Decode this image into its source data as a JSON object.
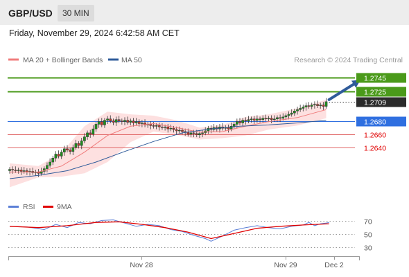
{
  "header": {
    "pair": "GBP/USD",
    "timeframe": "30 MIN"
  },
  "date_line": "Friday, November 29, 2024 6:42:58 AM CET",
  "attribution": "Research © 2024 Trading Central",
  "legend": {
    "main": [
      {
        "label": "MA 20 + Bollinger Bands",
        "color": "#f07c7c"
      },
      {
        "label": "MA 50",
        "color": "#2f5b9a"
      }
    ],
    "rsi": [
      {
        "label": "RSI",
        "color": "#5b7fd6"
      },
      {
        "label": "9MA",
        "color": "#e00000"
      }
    ]
  },
  "colors": {
    "resistance": "#4a9a1a",
    "pivot": "#2f6fe0",
    "support": "#e06565",
    "candle_up": "#1e8f1e",
    "candle_down": "#c0392b",
    "band_fill": "#fde0e0",
    "arrow": "#2f5b9a"
  },
  "chart_data": [
    {
      "type": "candlestick",
      "title": "GBP/USD",
      "timeframe": "30 MIN",
      "x_ticks": [
        "Nov 28",
        "Nov 29",
        "Dec 2"
      ],
      "ylim": [
        1.257,
        1.276
      ],
      "levels": [
        {
          "value": 1.2745,
          "label": "1.2745",
          "kind": "resistance"
        },
        {
          "value": 1.2725,
          "label": "1.2725",
          "kind": "resistance"
        },
        {
          "value": 1.2709,
          "label": "1.2709",
          "kind": "last"
        },
        {
          "value": 1.268,
          "label": "1.2680",
          "kind": "pivot"
        },
        {
          "value": 1.266,
          "label": "1.2660",
          "kind": "support"
        },
        {
          "value": 1.264,
          "label": "1.2640",
          "kind": "support"
        }
      ],
      "closes": [
        1.2607,
        1.2606,
        1.2605,
        1.2606,
        1.2604,
        1.2605,
        1.2603,
        1.2604,
        1.2602,
        1.2603,
        1.2601,
        1.2604,
        1.2608,
        1.2613,
        1.2618,
        1.2624,
        1.263,
        1.2627,
        1.2633,
        1.2638,
        1.2636,
        1.2634,
        1.264,
        1.2646,
        1.2643,
        1.265,
        1.2656,
        1.2662,
        1.266,
        1.2668,
        1.2675,
        1.2679,
        1.2674,
        1.2681,
        1.2683,
        1.268,
        1.2678,
        1.2682,
        1.268,
        1.2679,
        1.2681,
        1.2678,
        1.268,
        1.2677,
        1.2679,
        1.2676,
        1.2677,
        1.2674,
        1.2675,
        1.2673,
        1.2672,
        1.2673,
        1.2671,
        1.267,
        1.2671,
        1.2668,
        1.2669,
        1.2667,
        1.2665,
        1.2666,
        1.2664,
        1.2663,
        1.266,
        1.2662,
        1.2661,
        1.2659,
        1.2661,
        1.2662,
        1.2665,
        1.2669,
        1.2667,
        1.267,
        1.2668,
        1.2671,
        1.2669,
        1.267,
        1.2668,
        1.2672,
        1.2675,
        1.2679,
        1.2677,
        1.2681,
        1.268,
        1.2682,
        1.2683,
        1.2681,
        1.2683,
        1.2682,
        1.2684,
        1.2683,
        1.2684,
        1.2682,
        1.2683,
        1.2685,
        1.2684,
        1.2686,
        1.2688,
        1.269,
        1.2692,
        1.2695,
        1.2697,
        1.2699,
        1.2701,
        1.2703,
        1.2702,
        1.2704,
        1.2705,
        1.2703,
        1.2704,
        1.2702,
        1.2709
      ],
      "ma50_points": [
        [
          0,
          1.2593
        ],
        [
          10,
          1.2598
        ],
        [
          20,
          1.2605
        ],
        [
          30,
          1.2618
        ],
        [
          40,
          1.2634
        ],
        [
          50,
          1.2649
        ],
        [
          60,
          1.2662
        ],
        [
          70,
          1.2668
        ],
        [
          80,
          1.2672
        ],
        [
          90,
          1.2674
        ],
        [
          100,
          1.2677
        ],
        [
          110,
          1.2681
        ]
      ],
      "ma20_points": [
        [
          0,
          1.2603
        ],
        [
          10,
          1.2603
        ],
        [
          18,
          1.2612
        ],
        [
          26,
          1.2633
        ],
        [
          34,
          1.2658
        ],
        [
          42,
          1.2672
        ],
        [
          50,
          1.2676
        ],
        [
          58,
          1.267
        ],
        [
          66,
          1.2663
        ],
        [
          74,
          1.2664
        ],
        [
          82,
          1.2672
        ],
        [
          90,
          1.2679
        ],
        [
          100,
          1.2685
        ],
        [
          110,
          1.2697
        ]
      ],
      "band_upper_points": [
        [
          0,
          1.2616
        ],
        [
          10,
          1.2612
        ],
        [
          18,
          1.2632
        ],
        [
          26,
          1.2672
        ],
        [
          34,
          1.2694
        ],
        [
          42,
          1.269
        ],
        [
          50,
          1.2688
        ],
        [
          58,
          1.2681
        ],
        [
          66,
          1.267
        ],
        [
          74,
          1.2674
        ],
        [
          82,
          1.2686
        ],
        [
          90,
          1.269
        ],
        [
          100,
          1.2699
        ],
        [
          110,
          1.2712
        ]
      ],
      "band_lower_points": [
        [
          0,
          1.258
        ],
        [
          10,
          1.2595
        ],
        [
          18,
          1.2596
        ],
        [
          26,
          1.2601
        ],
        [
          34,
          1.2618
        ],
        [
          42,
          1.2648
        ],
        [
          50,
          1.2664
        ],
        [
          58,
          1.2659
        ],
        [
          66,
          1.2652
        ],
        [
          74,
          1.2654
        ],
        [
          82,
          1.2658
        ],
        [
          90,
          1.2667
        ],
        [
          100,
          1.2673
        ],
        [
          110,
          1.2684
        ]
      ],
      "arrow": {
        "from": [
          111,
          1.2712
        ],
        "to": [
          122,
          1.2742
        ]
      }
    },
    {
      "type": "line",
      "title": "RSI",
      "ylim": [
        20,
        80
      ],
      "y_ticks": [
        70,
        50,
        30
      ],
      "series": [
        {
          "name": "RSI",
          "points": [
            [
              0,
              62
            ],
            [
              6,
              61
            ],
            [
              12,
              57
            ],
            [
              16,
              65
            ],
            [
              20,
              60
            ],
            [
              24,
              68
            ],
            [
              28,
              66
            ],
            [
              32,
              71
            ],
            [
              36,
              72
            ],
            [
              40,
              67
            ],
            [
              44,
              62
            ],
            [
              48,
              65
            ],
            [
              52,
              63
            ],
            [
              56,
              57
            ],
            [
              60,
              54
            ],
            [
              64,
              48
            ],
            [
              68,
              43
            ],
            [
              70,
              39
            ],
            [
              74,
              47
            ],
            [
              78,
              56
            ],
            [
              82,
              60
            ],
            [
              86,
              63
            ],
            [
              90,
              60
            ],
            [
              94,
              58
            ],
            [
              98,
              62
            ],
            [
              102,
              64
            ],
            [
              104,
              68
            ],
            [
              106,
              63
            ],
            [
              108,
              66
            ],
            [
              110,
              67
            ],
            [
              111,
              68
            ]
          ]
        },
        {
          "name": "9MA",
          "points": [
            [
              0,
              62
            ],
            [
              10,
              60
            ],
            [
              20,
              63
            ],
            [
              30,
              68
            ],
            [
              38,
              69
            ],
            [
              46,
              65
            ],
            [
              54,
              60
            ],
            [
              62,
              53
            ],
            [
              70,
              43
            ],
            [
              78,
              51
            ],
            [
              86,
              59
            ],
            [
              94,
              62
            ],
            [
              102,
              64
            ],
            [
              111,
              66
            ]
          ]
        }
      ]
    }
  ]
}
